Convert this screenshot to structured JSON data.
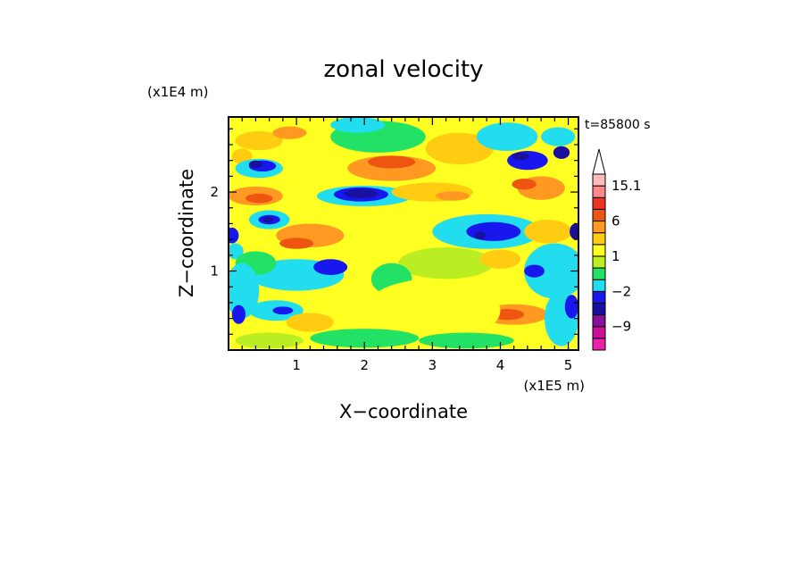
{
  "chart_data": {
    "type": "heatmap",
    "title": "zonal velocity",
    "xlabel": "X−coordinate",
    "ylabel": "Z−coordinate",
    "x_multiplier": "(x1E5 m)",
    "y_multiplier": "(x1E4 m)",
    "time_label": "t=85800 s",
    "xlim": [
      0,
      5.15
    ],
    "ylim": [
      0,
      2.95
    ],
    "x_ticks": [
      "1",
      "2",
      "3",
      "4",
      "5"
    ],
    "y_ticks": [
      "1",
      "2"
    ],
    "grid": false,
    "legend_placement": "right",
    "colorbar": {
      "tick_labels": [
        "15.1",
        "6",
        "1",
        "−2",
        "−9"
      ],
      "tick_values": [
        15.1,
        6,
        1,
        -2,
        -9
      ],
      "levels_low_to_high": [
        {
          "lower": -15,
          "upper": -12,
          "color": "#ee22aa"
        },
        {
          "lower": -12,
          "upper": -9,
          "color": "#cc1199"
        },
        {
          "lower": -9,
          "upper": -6,
          "color": "#88109a"
        },
        {
          "lower": -6,
          "upper": -4,
          "color": "#1a10a0"
        },
        {
          "lower": -4,
          "upper": -2,
          "color": "#1818ee"
        },
        {
          "lower": -2,
          "upper": -1,
          "color": "#22ddee"
        },
        {
          "lower": -1,
          "upper": 0,
          "color": "#22e266"
        },
        {
          "lower": 0,
          "upper": 1,
          "color": "#bbee22"
        },
        {
          "lower": 1,
          "upper": 2,
          "color": "#ffff22"
        },
        {
          "lower": 2,
          "upper": 3,
          "color": "#ffcc11"
        },
        {
          "lower": 3,
          "upper": 6,
          "color": "#ff9922"
        },
        {
          "lower": 6,
          "upper": 9,
          "color": "#ee5511"
        },
        {
          "lower": 9,
          "upper": 12,
          "color": "#ee3322"
        },
        {
          "lower": 12,
          "upper": 15.1,
          "color": "#ff8888"
        },
        {
          "lower": 15.1,
          "upper": 18,
          "color": "#ffbbbb"
        }
      ],
      "overflow_color": "#ffffff"
    },
    "background_level": {
      "lower": 1,
      "upper": 2,
      "color": "#ffff22"
    },
    "regions": [
      {
        "x": 0.45,
        "z": 2.65,
        "rx": 0.35,
        "rz": 0.12,
        "value": 2.5
      },
      {
        "x": 0.2,
        "z": 2.45,
        "rx": 0.15,
        "rz": 0.1,
        "value": 2.5
      },
      {
        "x": 0.9,
        "z": 2.75,
        "rx": 0.25,
        "rz": 0.08,
        "value": 3.5
      },
      {
        "x": 2.2,
        "z": 2.7,
        "rx": 0.7,
        "rz": 0.2,
        "value": -0.5
      },
      {
        "x": 1.9,
        "z": 2.85,
        "rx": 0.4,
        "rz": 0.1,
        "value": -1.5
      },
      {
        "x": 2.4,
        "z": 2.3,
        "rx": 0.65,
        "rz": 0.16,
        "value": 3.5
      },
      {
        "x": 2.4,
        "z": 2.38,
        "rx": 0.35,
        "rz": 0.08,
        "value": 7
      },
      {
        "x": 3.4,
        "z": 2.55,
        "rx": 0.5,
        "rz": 0.2,
        "value": 2.5
      },
      {
        "x": 4.1,
        "z": 2.7,
        "rx": 0.45,
        "rz": 0.18,
        "value": -1.5
      },
      {
        "x": 4.4,
        "z": 2.4,
        "rx": 0.3,
        "rz": 0.12,
        "value": -3
      },
      {
        "x": 4.85,
        "z": 2.7,
        "rx": 0.25,
        "rz": 0.12,
        "value": -1.5
      },
      {
        "x": 4.9,
        "z": 2.5,
        "rx": 0.12,
        "rz": 0.08,
        "value": -5
      },
      {
        "x": 4.3,
        "z": 2.45,
        "rx": 0.12,
        "rz": 0.05,
        "value": -5
      },
      {
        "x": 4.6,
        "z": 2.05,
        "rx": 0.35,
        "rz": 0.15,
        "value": 3.5
      },
      {
        "x": 4.35,
        "z": 2.1,
        "rx": 0.18,
        "rz": 0.07,
        "value": 7
      },
      {
        "x": 0.45,
        "z": 2.3,
        "rx": 0.35,
        "rz": 0.12,
        "value": -1.5
      },
      {
        "x": 0.5,
        "z": 2.33,
        "rx": 0.2,
        "rz": 0.07,
        "value": -3
      },
      {
        "x": 0.4,
        "z": 2.35,
        "rx": 0.1,
        "rz": 0.05,
        "value": -5
      },
      {
        "x": 2.0,
        "z": 1.95,
        "rx": 0.7,
        "rz": 0.13,
        "value": -1.5
      },
      {
        "x": 1.95,
        "z": 1.97,
        "rx": 0.4,
        "rz": 0.09,
        "value": -3
      },
      {
        "x": 1.95,
        "z": 1.98,
        "rx": 0.25,
        "rz": 0.06,
        "value": -5
      },
      {
        "x": 3.0,
        "z": 2.0,
        "rx": 0.6,
        "rz": 0.12,
        "value": 2.5
      },
      {
        "x": 3.3,
        "z": 1.95,
        "rx": 0.25,
        "rz": 0.06,
        "value": 3.5
      },
      {
        "x": 0.4,
        "z": 1.95,
        "rx": 0.4,
        "rz": 0.12,
        "value": 3.5
      },
      {
        "x": 0.45,
        "z": 1.92,
        "rx": 0.2,
        "rz": 0.06,
        "value": 7
      },
      {
        "x": 0.6,
        "z": 1.65,
        "rx": 0.3,
        "rz": 0.12,
        "value": -1.5
      },
      {
        "x": 0.6,
        "z": 1.65,
        "rx": 0.16,
        "rz": 0.06,
        "value": -3
      },
      {
        "x": 0.58,
        "z": 1.65,
        "rx": 0.08,
        "rz": 0.04,
        "value": -5
      },
      {
        "x": 0.05,
        "z": 1.45,
        "rx": 0.1,
        "rz": 0.1,
        "value": -3
      },
      {
        "x": 0.1,
        "z": 1.25,
        "rx": 0.12,
        "rz": 0.1,
        "value": -1.5
      },
      {
        "x": 1.2,
        "z": 1.45,
        "rx": 0.5,
        "rz": 0.15,
        "value": 3.5
      },
      {
        "x": 1.0,
        "z": 1.35,
        "rx": 0.25,
        "rz": 0.07,
        "value": 7
      },
      {
        "x": 3.8,
        "z": 1.5,
        "rx": 0.8,
        "rz": 0.22,
        "value": -1.5
      },
      {
        "x": 3.9,
        "z": 1.5,
        "rx": 0.4,
        "rz": 0.12,
        "value": -3
      },
      {
        "x": 3.7,
        "z": 1.45,
        "rx": 0.08,
        "rz": 0.05,
        "value": -5
      },
      {
        "x": 4.7,
        "z": 1.5,
        "rx": 0.35,
        "rz": 0.15,
        "value": 2.5
      },
      {
        "x": 5.1,
        "z": 1.5,
        "rx": 0.08,
        "rz": 0.1,
        "value": -5
      },
      {
        "x": 4.8,
        "z": 1.0,
        "rx": 0.45,
        "rz": 0.35,
        "value": -1.5
      },
      {
        "x": 4.5,
        "z": 1.0,
        "rx": 0.15,
        "rz": 0.08,
        "value": -3
      },
      {
        "x": 1.0,
        "z": 0.95,
        "rx": 0.7,
        "rz": 0.2,
        "value": -1.5
      },
      {
        "x": 0.4,
        "z": 1.1,
        "rx": 0.3,
        "rz": 0.15,
        "value": -0.5
      },
      {
        "x": 1.5,
        "z": 1.05,
        "rx": 0.25,
        "rz": 0.1,
        "value": -3
      },
      {
        "x": 3.2,
        "z": 1.1,
        "rx": 0.7,
        "rz": 0.2,
        "value": 0.5
      },
      {
        "x": 4.0,
        "z": 1.15,
        "rx": 0.3,
        "rz": 0.12,
        "value": 2.5
      },
      {
        "x": 2.4,
        "z": 0.9,
        "rx": 0.3,
        "rz": 0.2,
        "value": -0.5
      },
      {
        "x": 0.2,
        "z": 0.75,
        "rx": 0.25,
        "rz": 0.35,
        "value": -1.5
      },
      {
        "x": 0.15,
        "z": 0.45,
        "rx": 0.1,
        "rz": 0.12,
        "value": -3
      },
      {
        "x": 0.7,
        "z": 0.5,
        "rx": 0.4,
        "rz": 0.13,
        "value": -1.5
      },
      {
        "x": 0.8,
        "z": 0.5,
        "rx": 0.15,
        "rz": 0.05,
        "value": -3
      },
      {
        "x": 1.2,
        "z": 0.35,
        "rx": 0.35,
        "rz": 0.12,
        "value": 2.5
      },
      {
        "x": 4.2,
        "z": 0.45,
        "rx": 0.5,
        "rz": 0.13,
        "value": 3.5
      },
      {
        "x": 4.1,
        "z": 0.45,
        "rx": 0.25,
        "rz": 0.07,
        "value": 7
      },
      {
        "x": 4.9,
        "z": 0.4,
        "rx": 0.25,
        "rz": 0.35,
        "value": -1.5
      },
      {
        "x": 5.05,
        "z": 0.55,
        "rx": 0.1,
        "rz": 0.15,
        "value": -3
      },
      {
        "x": 3.0,
        "z": 0.5,
        "rx": 1.0,
        "rz": 0.4,
        "value": 1.5
      },
      {
        "x": 2.0,
        "z": 0.15,
        "rx": 0.8,
        "rz": 0.12,
        "value": -0.5
      },
      {
        "x": 3.5,
        "z": 0.12,
        "rx": 0.7,
        "rz": 0.1,
        "value": -0.5
      },
      {
        "x": 0.6,
        "z": 0.12,
        "rx": 0.5,
        "rz": 0.1,
        "value": 0.5
      }
    ]
  }
}
